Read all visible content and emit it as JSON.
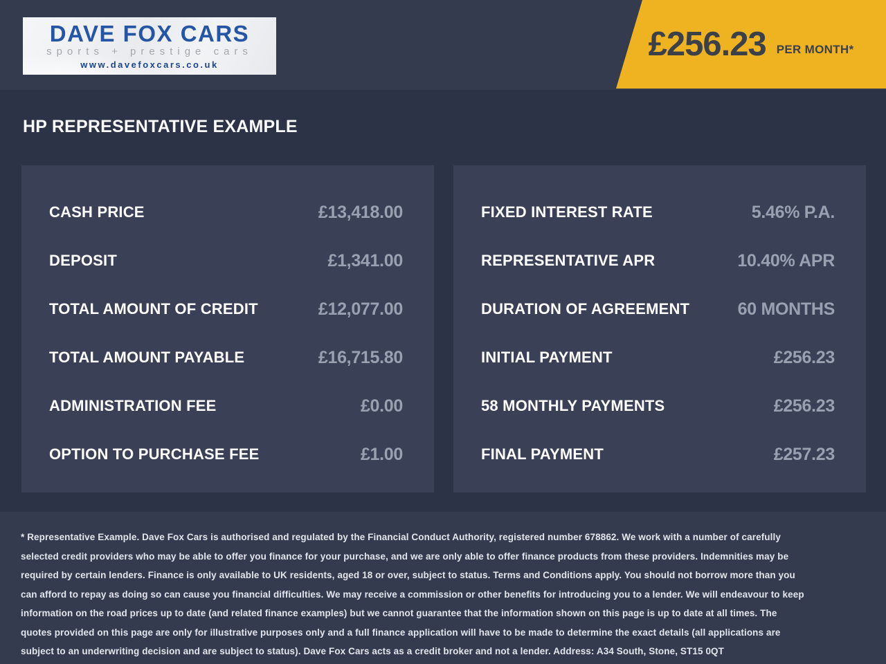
{
  "header": {
    "logo": {
      "title": "DAVE FOX CARS",
      "subtitle": "sports + prestige cars",
      "website": "www.davefoxcars.co.uk"
    },
    "price_banner": {
      "amount": "£256.23",
      "suffix": "PER MONTH*"
    }
  },
  "page_title": "HP REPRESENTATIVE EXAMPLE",
  "finance_tables": {
    "left": {
      "rows": [
        {
          "label": "CASH PRICE",
          "value": "£13,418.00"
        },
        {
          "label": "DEPOSIT",
          "value": "£1,341.00"
        },
        {
          "label": "TOTAL AMOUNT OF CREDIT",
          "value": "£12,077.00"
        },
        {
          "label": "TOTAL AMOUNT PAYABLE",
          "value": "£16,715.80"
        },
        {
          "label": "ADMINISTRATION FEE",
          "value": "£0.00"
        },
        {
          "label": "OPTION TO PURCHASE FEE",
          "value": "£1.00"
        }
      ]
    },
    "right": {
      "rows": [
        {
          "label": "FIXED INTEREST RATE",
          "value": "5.46% P.A."
        },
        {
          "label": "REPRESENTATIVE APR",
          "value": "10.40% APR"
        },
        {
          "label": "DURATION OF AGREEMENT",
          "value": "60 MONTHS"
        },
        {
          "label": "INITIAL PAYMENT",
          "value": "£256.23"
        },
        {
          "label": "58 MONTHLY PAYMENTS",
          "value": "£256.23"
        },
        {
          "label": "FINAL PAYMENT",
          "value": "£257.23"
        }
      ]
    }
  },
  "footer": {
    "disclaimer": "* Representative Example. Dave Fox Cars is authorised and regulated by the Financial Conduct Authority, registered number 678862. We work with a number of carefully selected credit providers who may be able to offer you finance for your purchase, and we are only able to offer finance products from these providers. Indemnities may be required by certain lenders. Finance is only available to UK residents, aged 18 or over, subject to status. Terms and Conditions apply. You should not borrow more than you can afford to repay as doing so can cause you financial difficulties. We may receive a commission or other benefits for introducing you to a lender. We will endeavour to keep information on the road prices up to date (and related finance examples) but we cannot guarantee that the information shown on this page is up to date at all times. The quotes provided on this page are only for illustrative purposes only and a full finance application will have to be made to determine the exact details (all applications are subject to an underwriting decision and are subject to status). Dave Fox Cars acts as a credit broker and not a lender. Address: A34 South, Stone, ST15 0QT"
  },
  "colors": {
    "accent_yellow": "#EFB322",
    "band_navy": "#353B4F",
    "body_navy": "#2D3346",
    "panel_navy": "#3A4157",
    "value_grey": "#99A1B1",
    "logo_blue": "#2456A5"
  }
}
